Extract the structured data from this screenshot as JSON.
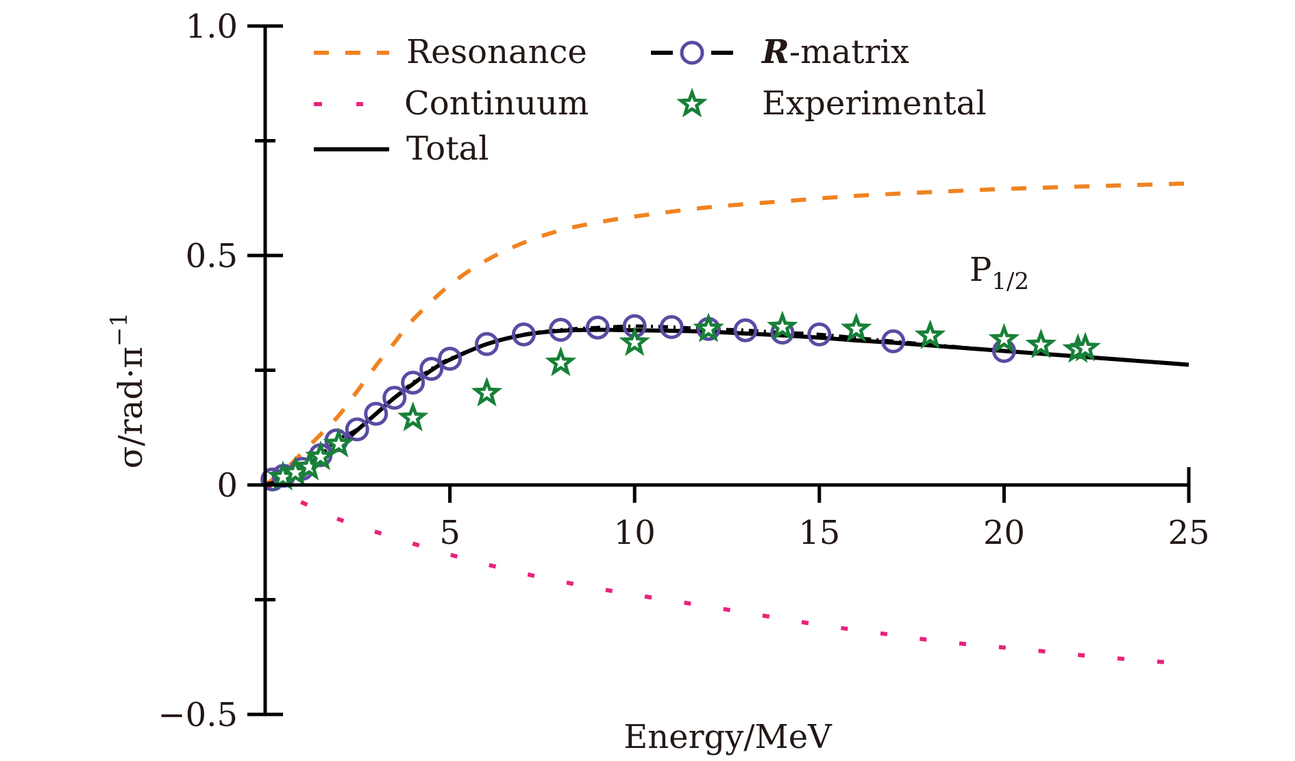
{
  "chart_data": {
    "type": "line",
    "title": "",
    "annotation": {
      "text": "P",
      "subscript": "1/2",
      "x": 19.7,
      "y": 0.45
    },
    "xlabel": "Energy/MeV",
    "ylabel": "σ/rad·π",
    "ylabel_superscript": "−1",
    "xlim": [
      0,
      25
    ],
    "ylim": [
      -0.5,
      1.0
    ],
    "xticks": [
      5,
      10,
      15,
      20,
      25
    ],
    "xtick_labels": [
      "5",
      "10",
      "15",
      "20",
      "25"
    ],
    "yticks": [
      -0.5,
      -0.25,
      0,
      0.25,
      0.5,
      0.75,
      1.0
    ],
    "ytick_labels": [
      "−0.5",
      "",
      "0",
      "",
      "0.5",
      "",
      "1.0"
    ],
    "grid": false,
    "legend_placement": "top-left",
    "colors": {
      "resonance": "#F08320",
      "continuum": "#E8247B",
      "total": "#000000",
      "rmatrix_marker": "#5A4BA3",
      "rmatrix_line": "#000000",
      "experimental": "#188038",
      "text": "#231815"
    },
    "series": [
      {
        "name": "Resonance",
        "style": "dashed",
        "x": [
          0,
          0.5,
          1,
          1.5,
          2,
          2.5,
          3,
          3.5,
          4,
          5,
          6,
          7,
          8,
          9,
          10,
          12,
          14,
          16,
          18,
          20,
          22,
          25
        ],
        "y": [
          0,
          0.03,
          0.07,
          0.11,
          0.152,
          0.205,
          0.26,
          0.31,
          0.36,
          0.436,
          0.49,
          0.528,
          0.555,
          0.572,
          0.585,
          0.605,
          0.618,
          0.63,
          0.638,
          0.645,
          0.65,
          0.657
        ]
      },
      {
        "name": "Continuum",
        "style": "dotted",
        "x": [
          0,
          0.5,
          1.13,
          2,
          3.3,
          4.5,
          5.47,
          7,
          8.5,
          9.9,
          12,
          13.5,
          15.1,
          17,
          18.5,
          20.5,
          22.5,
          24.96
        ],
        "y": [
          0,
          -0.02,
          -0.043,
          -0.075,
          -0.11,
          -0.14,
          -0.162,
          -0.193,
          -0.218,
          -0.238,
          -0.265,
          -0.285,
          -0.306,
          -0.327,
          -0.343,
          -0.358,
          -0.374,
          -0.39
        ]
      },
      {
        "name": "Total",
        "style": "solid",
        "x": [
          0,
          0.5,
          1,
          1.5,
          2,
          2.5,
          3,
          3.5,
          4,
          4.5,
          5,
          6,
          7,
          8,
          9,
          10,
          11,
          12,
          13,
          14,
          15,
          16,
          17,
          18,
          19,
          20,
          21,
          22,
          23,
          24,
          25
        ],
        "y": [
          0,
          0.012,
          0.03,
          0.055,
          0.085,
          0.12,
          0.155,
          0.19,
          0.22,
          0.25,
          0.273,
          0.307,
          0.327,
          0.336,
          0.338,
          0.337,
          0.336,
          0.334,
          0.33,
          0.326,
          0.321,
          0.315,
          0.31,
          0.304,
          0.298,
          0.292,
          0.286,
          0.28,
          0.274,
          0.268,
          0.262
        ]
      },
      {
        "name": "R-matrix",
        "style": "dash-dot-circle",
        "x": [
          0.2,
          0.5,
          1.0,
          1.5,
          1.93,
          2.49,
          3.0,
          3.5,
          4.0,
          4.5,
          5.0,
          6.0,
          7.0,
          8.0,
          9.0,
          10.0,
          11.0,
          12.0,
          13.0,
          14.0,
          15.0,
          17.0,
          20.0
        ],
        "y": [
          0.012,
          0.02,
          0.035,
          0.065,
          0.097,
          0.121,
          0.155,
          0.19,
          0.223,
          0.253,
          0.275,
          0.307,
          0.328,
          0.338,
          0.343,
          0.346,
          0.344,
          0.34,
          0.337,
          0.332,
          0.328,
          0.313,
          0.292
        ]
      },
      {
        "name": "Experimental",
        "style": "star-markers",
        "x": [
          0.48,
          0.82,
          1.19,
          1.5,
          1.99,
          4.0,
          6.0,
          8.0,
          10.0,
          12.0,
          14.0,
          16.0,
          18.0,
          20.0,
          21.0,
          22.0,
          22.2
        ],
        "y": [
          0.017,
          0.027,
          0.039,
          0.061,
          0.089,
          0.146,
          0.2,
          0.266,
          0.31,
          0.34,
          0.344,
          0.34,
          0.325,
          0.317,
          0.305,
          0.295,
          0.298
        ]
      }
    ],
    "legend": [
      {
        "label": "Resonance",
        "key": "resonance"
      },
      {
        "label": "Continuum",
        "key": "continuum"
      },
      {
        "label": "Total",
        "key": "total"
      },
      {
        "label_bold_italic": "R",
        "label": "-matrix",
        "key": "rmatrix"
      },
      {
        "label": "Experimental",
        "key": "experimental"
      }
    ]
  }
}
